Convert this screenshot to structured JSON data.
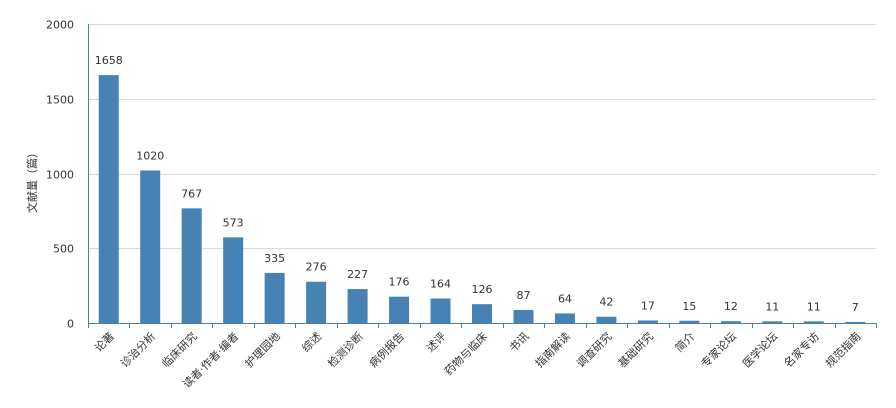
{
  "chart_data": {
    "type": "bar",
    "ylabel": "文献量（篇）",
    "xlabel": "",
    "ylim": [
      0,
      2000
    ],
    "yticks": [
      0,
      500,
      1000,
      1500,
      2000
    ],
    "grid": true,
    "bar_color": "#4682b4",
    "categories": [
      "论著",
      "诊治分析",
      "临床研究",
      "读者·作者·编者",
      "护理园地",
      "综述",
      "检测诊断",
      "病例报告",
      "述评",
      "药物与临床",
      "书讯",
      "指南解读",
      "调查研究",
      "基础研究",
      "简介",
      "专家论坛",
      "医学论坛",
      "名家专访",
      "规范指南"
    ],
    "values": [
      1658,
      1020,
      767,
      573,
      335,
      276,
      227,
      176,
      164,
      126,
      87,
      64,
      42,
      17,
      15,
      12,
      11,
      11,
      7
    ]
  }
}
